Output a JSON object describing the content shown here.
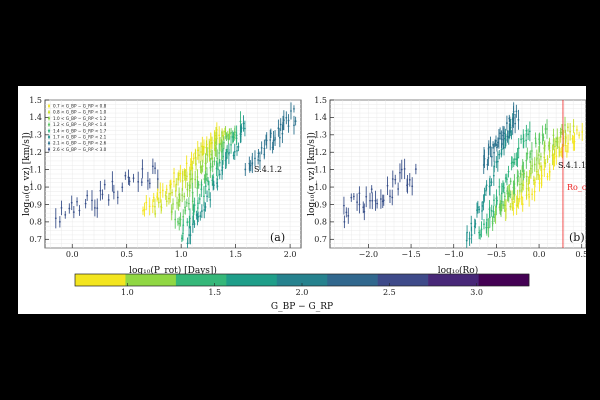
{
  "chart_data": [
    {
      "type": "scatter",
      "panel_label": "(a)",
      "xlabel": "log₁₀(P_rot) [Days])",
      "ylabel": "log₁₀(σ_vz) [km/s])",
      "xlim": [
        -0.25,
        2.1
      ],
      "ylim": [
        0.65,
        1.5
      ],
      "xticks": [
        0.0,
        0.5,
        1.0,
        1.5,
        2.0
      ],
      "xtick_labels": [
        "0.0",
        "0.5",
        "1.0",
        "1.5",
        "2.0"
      ],
      "yticks": [
        0.7,
        0.8,
        0.9,
        1.0,
        1.1,
        1.2,
        1.3,
        1.4,
        1.5
      ],
      "ytick_labels": [
        "0.7",
        "0.8",
        "0.9",
        "1.0",
        "1.1",
        "1.2",
        "1.3",
        "1.4",
        "1.5"
      ],
      "grid": true,
      "annotations": [
        "S.4.1.2"
      ],
      "legend_position": "top-left",
      "series": [
        {
          "name": "0.7 < G_BP − G_RP < 0.8",
          "color": "#f3e51f",
          "x_range": [
            0.65,
            1.35
          ],
          "y_range": [
            0.86,
            1.32
          ],
          "noise": 0.03
        },
        {
          "name": "0.8 < G_BP − G_RP < 1.0",
          "color": "#c9df27",
          "x_range": [
            0.75,
            1.4
          ],
          "y_range": [
            0.86,
            1.33
          ],
          "noise": 0.03
        },
        {
          "name": "1.0 < G_BP − G_RP < 1.2",
          "color": "#90d743",
          "x_range": [
            0.9,
            1.45
          ],
          "y_range": [
            0.86,
            1.33
          ],
          "noise": 0.03
        },
        {
          "name": "1.2 < G_BP − G_RP < 1.4",
          "color": "#5cc864",
          "x_range": [
            0.95,
            1.5
          ],
          "y_range": [
            0.78,
            1.35
          ],
          "noise": 0.035
        },
        {
          "name": "1.4 < G_BP − G_RP < 1.7",
          "color": "#2db27d",
          "x_range": [
            1.0,
            1.55
          ],
          "y_range": [
            0.72,
            1.35
          ],
          "noise": 0.04
        },
        {
          "name": "1.7 < G_BP − G_RP < 2.1",
          "color": "#21918c",
          "x_range": [
            1.05,
            1.6
          ],
          "y_range": [
            0.7,
            1.36
          ],
          "noise": 0.04
        },
        {
          "name": "2.1 < G_BP − G_RP < 2.6",
          "color": "#2c728e",
          "x_range": [
            1.6,
            2.05
          ],
          "y_range": [
            1.12,
            1.42
          ],
          "noise": 0.05
        },
        {
          "name": "2.6 < G_BP − G_RP < 3.0",
          "color": "#3b528b",
          "x_range": [
            -0.15,
            0.8
          ],
          "y_range": [
            0.85,
            1.08
          ],
          "noise": 0.07
        }
      ]
    },
    {
      "type": "scatter",
      "panel_label": "(b)",
      "xlabel": "log₁₀(Ro)",
      "ylabel": "log₁₀(σ_vz) [km/s])",
      "xlim": [
        -2.45,
        0.55
      ],
      "ylim": [
        0.65,
        1.5
      ],
      "xticks": [
        -2.0,
        -1.5,
        -1.0,
        -0.5,
        0.0,
        0.5
      ],
      "xtick_labels": [
        "−2.0",
        "−1.5",
        "−1.0",
        "−0.5",
        "0.0",
        "0.5"
      ],
      "yticks": [
        0.7,
        0.8,
        0.9,
        1.0,
        1.1,
        1.2,
        1.3,
        1.4,
        1.5
      ],
      "ytick_labels": [
        "0.7",
        "0.8",
        "0.9",
        "1.0",
        "1.1",
        "1.2",
        "1.3",
        "1.4",
        "1.5"
      ],
      "grid": true,
      "annotations": [
        "S.4.1.1",
        "Ro_crit."
      ],
      "vline": {
        "x": 0.28,
        "color": "#ee2222"
      },
      "series": [
        {
          "name": "0.7 < G_BP − G_RP < 0.8",
          "color": "#f3e51f",
          "x_range": [
            -0.3,
            0.5
          ],
          "y_range": [
            0.86,
            1.33
          ],
          "noise": 0.03
        },
        {
          "name": "0.8 < G_BP − G_RP < 1.0",
          "color": "#c9df27",
          "x_range": [
            -0.4,
            0.4
          ],
          "y_range": [
            0.86,
            1.35
          ],
          "noise": 0.03
        },
        {
          "name": "1.0 < G_BP − G_RP < 1.2",
          "color": "#90d743",
          "x_range": [
            -0.5,
            0.3
          ],
          "y_range": [
            0.86,
            1.35
          ],
          "noise": 0.03
        },
        {
          "name": "1.2 < G_BP − G_RP < 1.4",
          "color": "#5cc864",
          "x_range": [
            -0.6,
            0.1
          ],
          "y_range": [
            0.78,
            1.35
          ],
          "noise": 0.035
        },
        {
          "name": "1.4 < G_BP − G_RP < 1.7",
          "color": "#2db27d",
          "x_range": [
            -0.7,
            -0.1
          ],
          "y_range": [
            0.72,
            1.35
          ],
          "noise": 0.04
        },
        {
          "name": "1.7 < G_BP − G_RP < 2.1",
          "color": "#21918c",
          "x_range": [
            -0.85,
            -0.3
          ],
          "y_range": [
            0.7,
            1.36
          ],
          "noise": 0.04
        },
        {
          "name": "2.1 < G_BP − G_RP < 2.6",
          "color": "#2c728e",
          "x_range": [
            -0.65,
            -0.25
          ],
          "y_range": [
            1.15,
            1.42
          ],
          "noise": 0.05
        },
        {
          "name": "2.6 < G_BP − G_RP < 3.0",
          "color": "#3b528b",
          "x_range": [
            -2.3,
            -1.45
          ],
          "y_range": [
            0.85,
            1.08
          ],
          "noise": 0.07
        }
      ]
    }
  ],
  "colorbar": {
    "label": "G_BP − G_RP",
    "range": [
      0.7,
      3.3
    ],
    "ticks": [
      1.0,
      1.5,
      2.0,
      2.5,
      3.0
    ],
    "tick_labels": [
      "1.0",
      "1.5",
      "2.0",
      "2.5",
      "3.0"
    ],
    "colors": [
      "#f3e51f",
      "#90d743",
      "#35b779",
      "#1f9e89",
      "#26828e",
      "#31688e",
      "#3e4a89",
      "#482878",
      "#440154"
    ]
  }
}
